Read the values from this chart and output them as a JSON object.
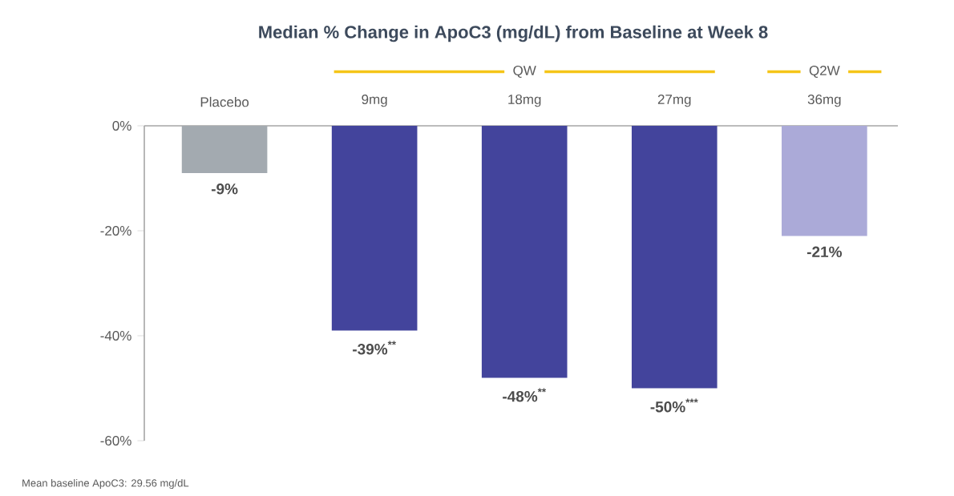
{
  "chart_data": {
    "type": "bar",
    "title": "Median % Change in ApoC3 (mg/dL) from Baseline at Week 8",
    "categories": [
      "Placebo",
      "9mg",
      "18mg",
      "27mg",
      "36mg"
    ],
    "values": [
      -9,
      -39,
      -48,
      -50,
      -21
    ],
    "colors": [
      "#a3aab0",
      "#43449c",
      "#43449c",
      "#43449c",
      "#abaad8"
    ],
    "value_labels": [
      "-9%",
      "-39%$^{**}$",
      "-48%$^{**}$",
      "-50%$^{***}$",
      "-21%"
    ],
    "ylim": [
      -60,
      0
    ],
    "yticks": [
      {
        "value": 0,
        "label": "0%"
      },
      {
        "value": -20,
        "label": "-20%"
      },
      {
        "value": -40,
        "label": "-40%"
      },
      {
        "value": -60,
        "label": "-60%"
      }
    ],
    "annotations": [
      "QW",
      "Q2W",
      "Mean baseline ApoC3: 29.56 mg/dL"
    ]
  }
}
